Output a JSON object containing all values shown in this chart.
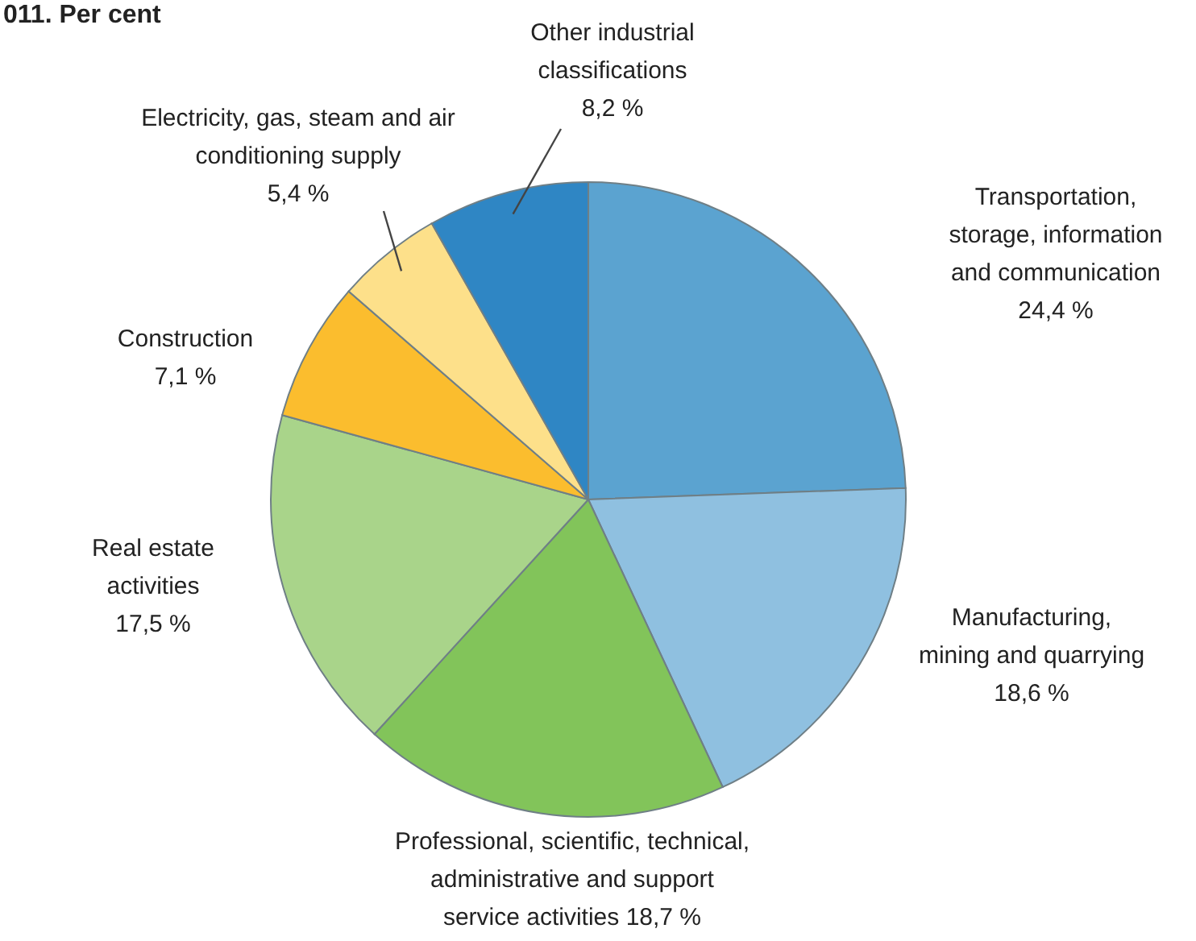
{
  "chart_data": {
    "type": "pie",
    "title": "011. Per cent",
    "categories": [
      "Transportation, storage, information and communication",
      "Manufacturing, mining and quarrying",
      "Professional, scientific, technical, administrative and support service activities",
      "Real estate activities",
      "Construction",
      "Electricity, gas, steam and air conditioning supply",
      "Other industrial classifications"
    ],
    "values": [
      24.4,
      18.6,
      18.7,
      17.5,
      7.1,
      5.4,
      8.2
    ],
    "value_labels": [
      "24,4 %",
      "18,6 %",
      "18,7 %",
      "17,5 %",
      "7,1 %",
      "5,4 %",
      "8,2 %"
    ],
    "colors": [
      "#5ba3d0",
      "#8fc0e0",
      "#82c45a",
      "#a9d48a",
      "#fbbd2e",
      "#fde08a",
      "#2f86c4"
    ]
  }
}
